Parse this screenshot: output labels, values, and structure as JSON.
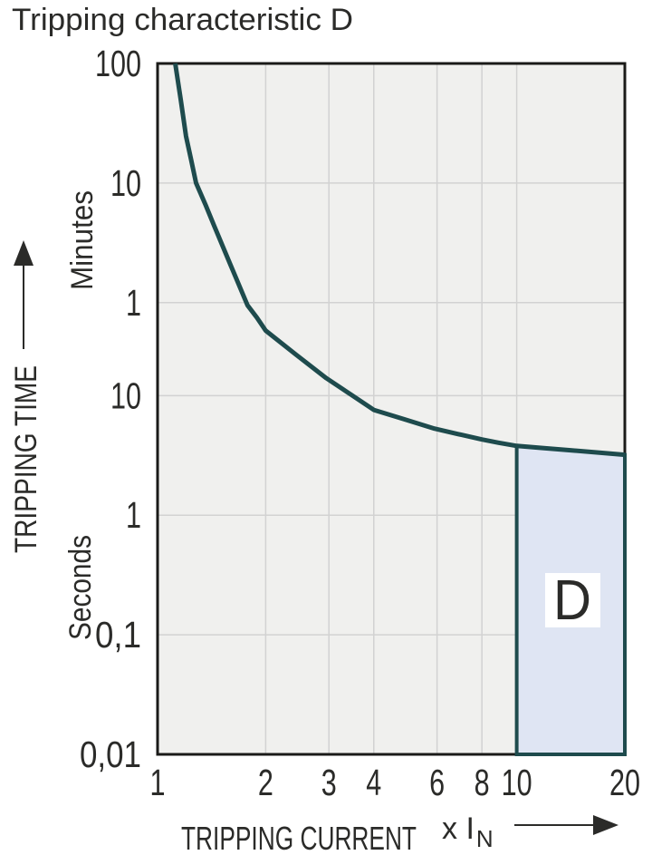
{
  "title": "Tripping characteristic D",
  "chart_data": {
    "type": "line",
    "title": "Tripping characteristic D",
    "x_axis": {
      "label": "TRIPPING CURRENT",
      "unit_prefix": "x I",
      "unit_subscript": "N",
      "scale": "log",
      "range": [
        1,
        20
      ],
      "ticks": [
        1,
        2,
        3,
        4,
        6,
        8,
        10,
        20
      ]
    },
    "y_axis": {
      "label": "TRIPPING TIME",
      "scale": "log",
      "range_seconds": [
        0.01,
        6000
      ],
      "unit_top": "Minutes",
      "unit_bottom": "Seconds",
      "ticks": [
        {
          "label": "100",
          "seconds": 6000
        },
        {
          "label": "10",
          "seconds": 600
        },
        {
          "label": "1",
          "seconds": 60
        },
        {
          "label": "10",
          "seconds": 10
        },
        {
          "label": "1",
          "seconds": 1
        },
        {
          "label": "0,1",
          "seconds": 0.1
        },
        {
          "label": "0,01",
          "seconds": 0.01
        }
      ]
    },
    "grid": true,
    "legend": false,
    "series": [
      {
        "name": "tripping-time-curve",
        "color": "#1e4b4d",
        "points": [
          [
            1.12,
            6000
          ],
          [
            1.16,
            3000
          ],
          [
            1.2,
            1480
          ],
          [
            1.24,
            940
          ],
          [
            1.28,
            600
          ],
          [
            1.36,
            395
          ],
          [
            1.44,
            260
          ],
          [
            1.6,
            122
          ],
          [
            1.78,
            57
          ],
          [
            1.89,
            45
          ],
          [
            2,
            35
          ],
          [
            2.43,
            22
          ],
          [
            2.95,
            14
          ],
          [
            3.44,
            10.3
          ],
          [
            4,
            7.6
          ],
          [
            4.86,
            6.35
          ],
          [
            5.9,
            5.3
          ],
          [
            6.87,
            4.77
          ],
          [
            8,
            4.3
          ],
          [
            8.9,
            4.04
          ],
          [
            10,
            3.8
          ],
          [
            11.8,
            3.65
          ],
          [
            14,
            3.5
          ],
          [
            16.7,
            3.35
          ],
          [
            20,
            3.2
          ]
        ]
      }
    ],
    "region": {
      "label": "D",
      "x_range": [
        10,
        20
      ],
      "bottom_seconds": 0.01,
      "fill": "#dfe5f3",
      "border": "#1e4b4d"
    },
    "colors": {
      "plot_background": "#f0f0ee",
      "grid": "#d2d2d2",
      "plot_border": "#1a1a18",
      "text": "#2b2b29"
    }
  }
}
